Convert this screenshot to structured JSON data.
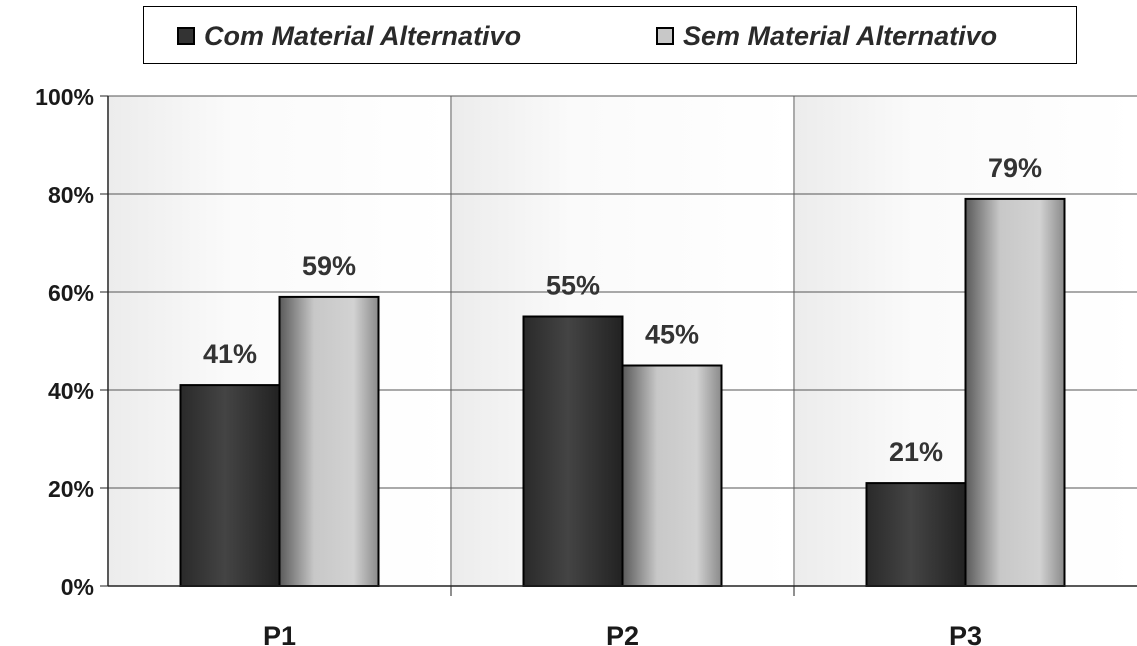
{
  "chart_data": {
    "type": "bar",
    "categories": [
      "P1",
      "P2",
      "P3"
    ],
    "series": [
      {
        "name": "Com Material Alternativo",
        "values": [
          41,
          55,
          21
        ],
        "labels": [
          "41%",
          "55%",
          "21%"
        ],
        "color": "#333333"
      },
      {
        "name": "Sem Material Alternativo",
        "values": [
          59,
          45,
          79
        ],
        "labels": [
          "59%",
          "45%",
          "79%"
        ],
        "color": "#c8c8c8"
      }
    ],
    "y_ticks": [
      "0%",
      "20%",
      "40%",
      "60%",
      "80%",
      "100%"
    ],
    "ylim": [
      0,
      100
    ],
    "grid": true,
    "legend_position": "top"
  }
}
